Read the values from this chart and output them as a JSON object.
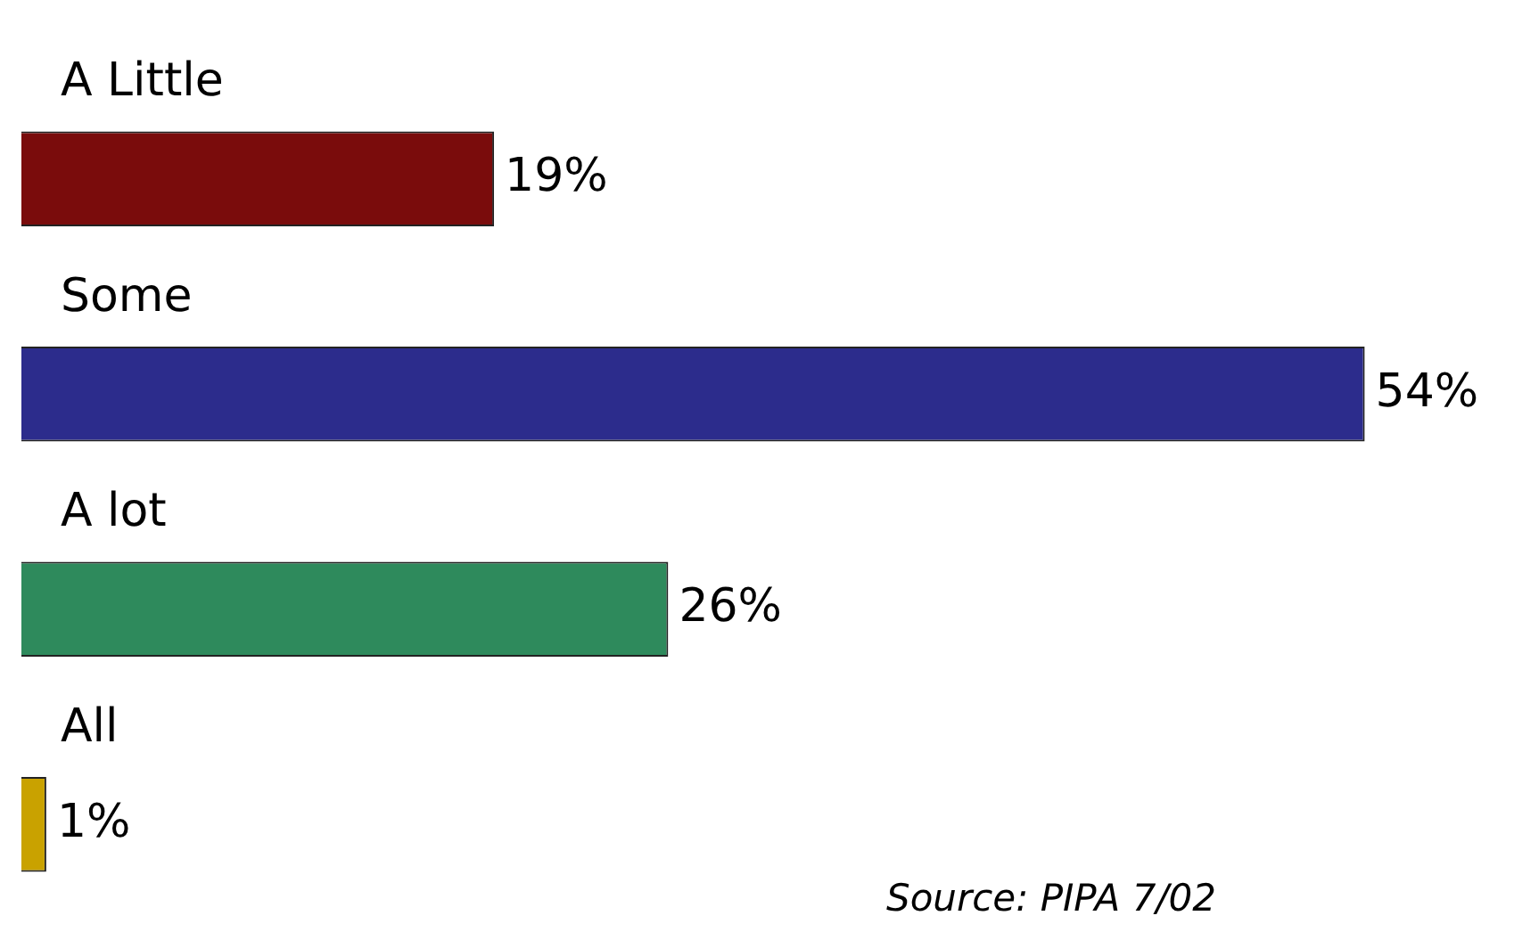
{
  "chart_data": {
    "type": "bar",
    "orientation": "horizontal",
    "categories": [
      "A Little",
      "Some",
      "A lot",
      "All"
    ],
    "values": [
      19,
      54,
      26,
      1
    ],
    "value_labels": [
      "19%",
      "54%",
      "26%",
      "1%"
    ],
    "colors": [
      "#7a0c0c",
      "#2c2c8c",
      "#2e8a5c",
      "#c9a200"
    ],
    "legend": false,
    "annotations": [
      "Source: PIPA 7/02"
    ]
  }
}
